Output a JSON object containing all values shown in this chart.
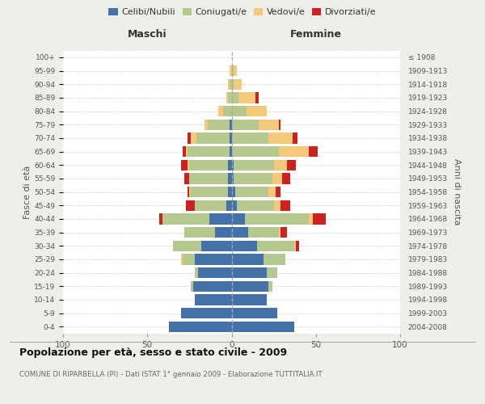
{
  "age_groups": [
    "0-4",
    "5-9",
    "10-14",
    "15-19",
    "20-24",
    "25-29",
    "30-34",
    "35-39",
    "40-44",
    "45-49",
    "50-54",
    "55-59",
    "60-64",
    "65-69",
    "70-74",
    "75-79",
    "80-84",
    "85-89",
    "90-94",
    "95-99",
    "100+"
  ],
  "birth_years": [
    "2004-2008",
    "1999-2003",
    "1994-1998",
    "1989-1993",
    "1984-1988",
    "1979-1983",
    "1974-1978",
    "1969-1973",
    "1964-1968",
    "1959-1963",
    "1954-1958",
    "1949-1953",
    "1944-1948",
    "1939-1943",
    "1934-1938",
    "1929-1933",
    "1924-1928",
    "1919-1923",
    "1914-1918",
    "1909-1913",
    "≤ 1908"
  ],
  "colors": {
    "celibi": "#4472a8",
    "coniugati": "#b5c98e",
    "vedovi": "#f5c97a",
    "divorziati": "#cc2222"
  },
  "males": {
    "celibi": [
      37,
      30,
      22,
      23,
      20,
      22,
      18,
      10,
      13,
      3,
      2,
      2,
      2,
      1,
      1,
      1,
      0,
      0,
      0,
      0,
      0
    ],
    "coniugati": [
      0,
      0,
      0,
      1,
      2,
      7,
      17,
      18,
      28,
      19,
      22,
      23,
      23,
      25,
      20,
      13,
      5,
      2,
      1,
      0,
      0
    ],
    "vedovi": [
      0,
      0,
      0,
      0,
      0,
      1,
      0,
      0,
      0,
      0,
      1,
      0,
      1,
      1,
      3,
      2,
      3,
      1,
      1,
      1,
      0
    ],
    "divorziati": [
      0,
      0,
      0,
      0,
      0,
      0,
      0,
      0,
      2,
      5,
      1,
      3,
      4,
      2,
      2,
      0,
      0,
      0,
      0,
      0,
      0
    ]
  },
  "females": {
    "celibi": [
      37,
      27,
      21,
      22,
      21,
      19,
      15,
      10,
      8,
      3,
      2,
      1,
      1,
      0,
      0,
      0,
      0,
      0,
      0,
      0,
      0
    ],
    "coniugati": [
      0,
      0,
      0,
      2,
      6,
      13,
      22,
      18,
      38,
      22,
      20,
      23,
      24,
      28,
      22,
      16,
      9,
      4,
      1,
      1,
      0
    ],
    "vedovi": [
      0,
      0,
      0,
      0,
      0,
      0,
      1,
      1,
      2,
      4,
      4,
      6,
      8,
      18,
      14,
      12,
      12,
      10,
      5,
      2,
      0
    ],
    "divorziati": [
      0,
      0,
      0,
      0,
      0,
      0,
      2,
      4,
      8,
      6,
      3,
      5,
      5,
      5,
      3,
      1,
      0,
      2,
      0,
      0,
      0
    ]
  },
  "xlim": 100,
  "title": "Popolazione per età, sesso e stato civile - 2009",
  "subtitle": "COMUNE DI RIPARBELLA (PI) - Dati ISTAT 1° gennaio 2009 - Elaborazione TUTTITALIA.IT",
  "ylabel_left": "Fasce di età",
  "ylabel_right": "Anni di nascita",
  "xlabel_maschi": "Maschi",
  "xlabel_femmine": "Femmine",
  "legend_labels": [
    "Celibi/Nubili",
    "Coniugati/e",
    "Vedovi/e",
    "Divorziati/e"
  ],
  "bg_color": "#efefea",
  "plot_bg": "#ffffff",
  "grid_color": "#cccccc"
}
